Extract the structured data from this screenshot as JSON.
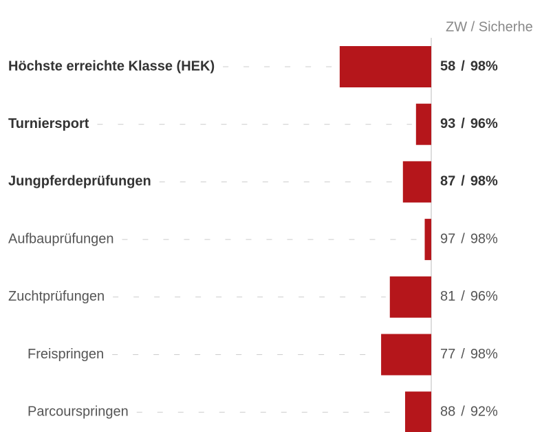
{
  "chart_data": {
    "type": "bar",
    "header": "ZW / Sicherhe",
    "categories": [
      "Höchste erreichte Klasse (HEK)",
      "Turniersport",
      "Jungpferdeprüfungen",
      "Aufbauprüfungen",
      "Zuchtprüfungen",
      "Freispringen",
      "Parcourspringen"
    ],
    "bold": [
      true,
      true,
      true,
      false,
      false,
      false,
      false
    ],
    "level": [
      0,
      0,
      0,
      0,
      0,
      1,
      1
    ],
    "values": [
      58,
      93,
      87,
      97,
      81,
      77,
      88
    ],
    "separator": "/",
    "reliability": [
      98,
      96,
      98,
      98,
      96,
      98,
      92
    ],
    "reliability_labels": [
      "98%",
      "96%",
      "98%",
      "98%",
      "96%",
      "98%",
      "92%"
    ],
    "color": "#b5161b",
    "xlim": [
      0,
      100
    ]
  }
}
